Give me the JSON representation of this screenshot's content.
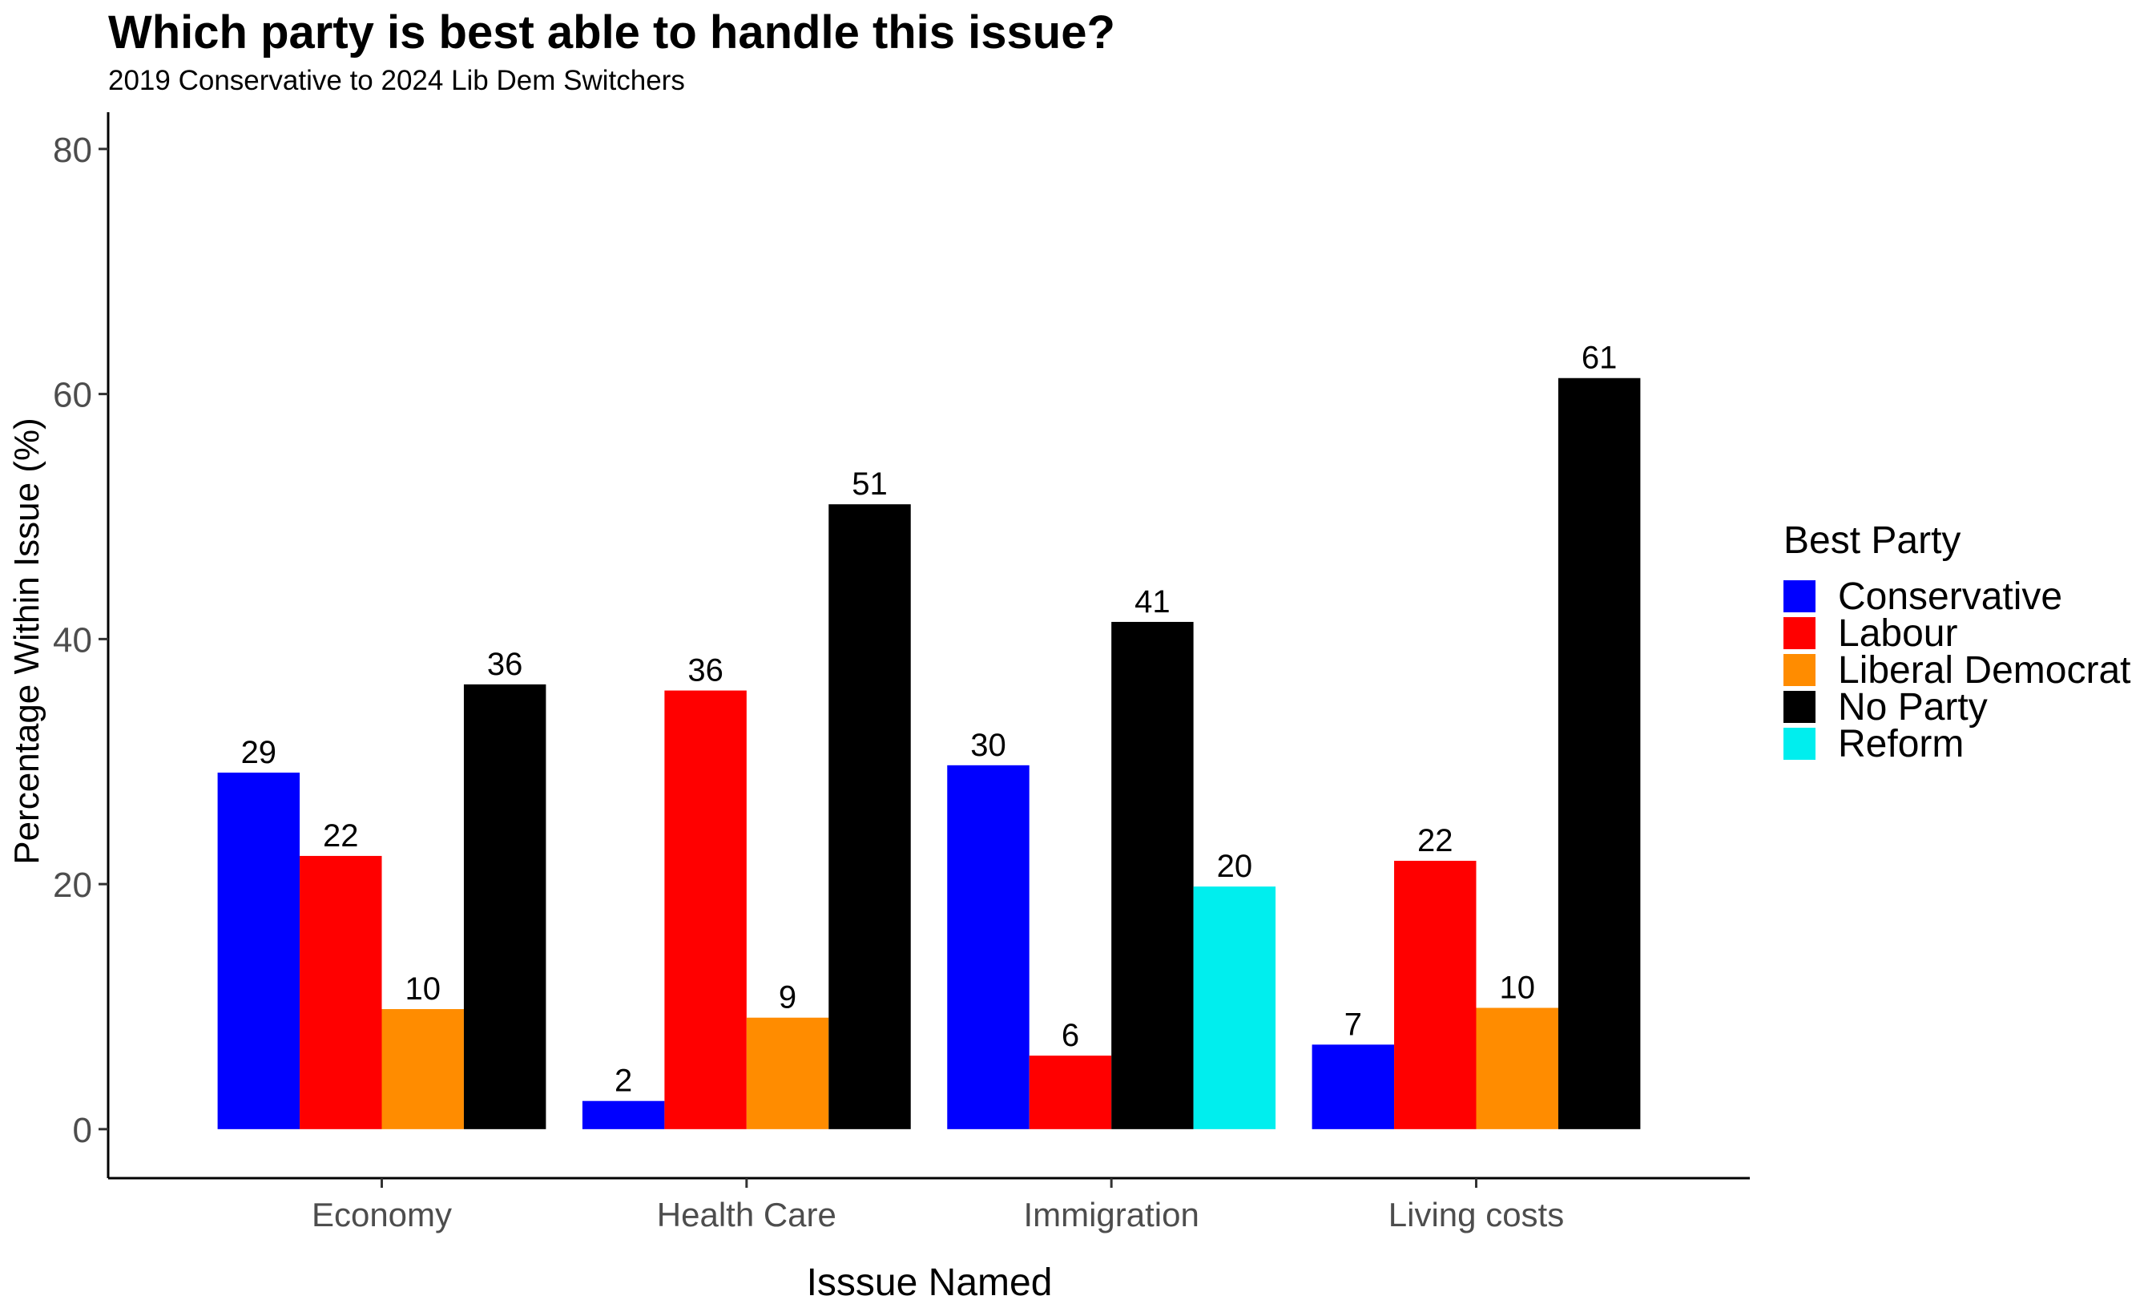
{
  "chart_data": {
    "type": "bar",
    "title": "Which party is best able to handle this issue?",
    "subtitle": "2019 Conservative to 2024 Lib Dem Switchers",
    "xlabel": "Isssue Named",
    "ylabel": "Percentage Within Issue (%)",
    "ylim": [
      -4,
      83
    ],
    "yticks": [
      0,
      20,
      40,
      60,
      80
    ],
    "grid": false,
    "legend": {
      "title": "Best Party",
      "placement": "right"
    },
    "categories": [
      {
        "label": "Economy",
        "bars": [
          {
            "party": "Conservative",
            "value": 29.1,
            "label": "29"
          },
          {
            "party": "Labour",
            "value": 22.3,
            "label": "22"
          },
          {
            "party": "Liberal Democrat",
            "value": 9.8,
            "label": "10"
          },
          {
            "party": "No Party",
            "value": 36.3,
            "label": "36"
          }
        ]
      },
      {
        "label": "Health Care",
        "bars": [
          {
            "party": "Conservative",
            "value": 2.3,
            "label": "2"
          },
          {
            "party": "Labour",
            "value": 35.8,
            "label": "36"
          },
          {
            "party": "Liberal Democrat",
            "value": 9.1,
            "label": "9"
          },
          {
            "party": "No Party",
            "value": 51.0,
            "label": "51"
          }
        ]
      },
      {
        "label": "Immigration",
        "bars": [
          {
            "party": "Conservative",
            "value": 29.7,
            "label": "30"
          },
          {
            "party": "Labour",
            "value": 6.0,
            "label": "6"
          },
          {
            "party": "No Party",
            "value": 41.4,
            "label": "41"
          },
          {
            "party": "Reform",
            "value": 19.8,
            "label": "20"
          }
        ]
      },
      {
        "label": "Living costs",
        "bars": [
          {
            "party": "Conservative",
            "value": 6.9,
            "label": "7"
          },
          {
            "party": "Labour",
            "value": 21.9,
            "label": "22"
          },
          {
            "party": "Liberal Democrat",
            "value": 9.9,
            "label": "10"
          },
          {
            "party": "No Party",
            "value": 61.3,
            "label": "61"
          }
        ]
      }
    ],
    "series": [
      {
        "name": "Conservative",
        "color": "#0000FF"
      },
      {
        "name": "Labour",
        "color": "#FF0000"
      },
      {
        "name": "Liberal Democrat",
        "color": "#FF8C00"
      },
      {
        "name": "No Party",
        "color": "#000000"
      },
      {
        "name": "Reform",
        "color": "#00EEEE"
      }
    ]
  }
}
